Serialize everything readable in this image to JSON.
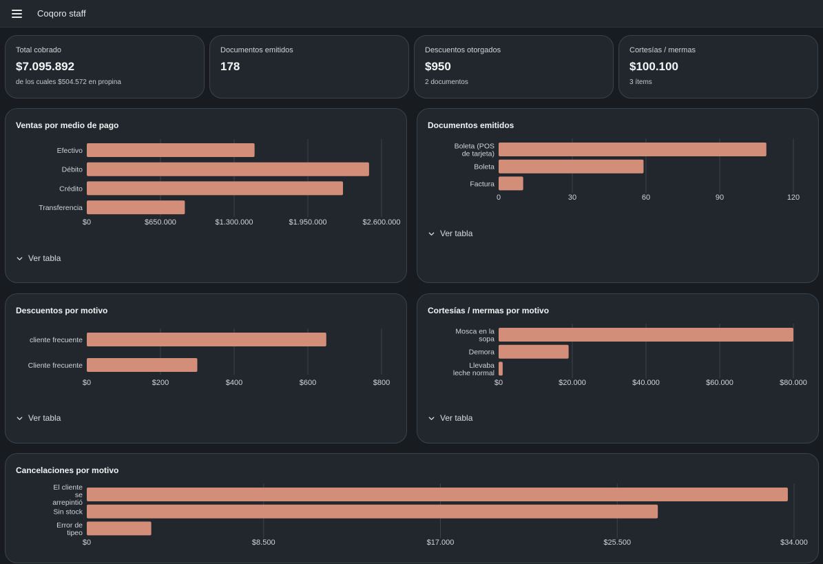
{
  "header": {
    "title": "Coqoro staff",
    "menu_icon": "hamburger-menu-icon"
  },
  "kpis": [
    {
      "label": "Total cobrado",
      "value": "$7.095.892",
      "sub": "de los cuales $504.572 en propina"
    },
    {
      "label": "Documentos emitidos",
      "value": "178",
      "sub": ""
    },
    {
      "label": "Descuentos otorgados",
      "value": "$950",
      "sub": "2 documentos"
    },
    {
      "label": "Cortesías / mermas",
      "value": "$100.100",
      "sub": "3 ítems"
    }
  ],
  "toggle_label": "Ver tabla",
  "colors": {
    "bar": "#d28e78",
    "grid": "#3b434b",
    "panel": "#21272d"
  },
  "chart_data": [
    {
      "type": "bar",
      "orientation": "horizontal",
      "title": "Ventas por medio de pago",
      "categories": [
        "Efectivo",
        "Débito",
        "Crédito",
        "Transferencia"
      ],
      "values": [
        1480000,
        2490000,
        2260000,
        865000
      ],
      "xlim": [
        0,
        2600000
      ],
      "ticks": [
        0,
        650000,
        1300000,
        1950000,
        2600000
      ],
      "tick_labels": [
        "$0",
        "$650.000",
        "$1.300.000",
        "$1.950.000",
        "$2.600.000"
      ]
    },
    {
      "type": "bar",
      "orientation": "horizontal",
      "title": "Documentos emitidos",
      "categories": [
        "Boleta (POS de tarjeta)",
        "Boleta",
        "Factura"
      ],
      "values": [
        109,
        59,
        10
      ],
      "xlim": [
        0,
        120
      ],
      "ticks": [
        0,
        30,
        60,
        90,
        120
      ],
      "tick_labels": [
        "0",
        "30",
        "60",
        "90",
        "120"
      ]
    },
    {
      "type": "bar",
      "orientation": "horizontal",
      "title": "Descuentos por motivo",
      "categories": [
        "cliente frecuente",
        "Cliente frecuente"
      ],
      "values": [
        650,
        300
      ],
      "xlim": [
        0,
        800
      ],
      "ticks": [
        0,
        200,
        400,
        600,
        800
      ],
      "tick_labels": [
        "$0",
        "$200",
        "$400",
        "$600",
        "$800"
      ]
    },
    {
      "type": "bar",
      "orientation": "horizontal",
      "title": "Cortesías / mermas por motivo",
      "categories": [
        "Mosca en la sopa",
        "Demora",
        "Llevaba leche normal"
      ],
      "values": [
        80000,
        19000,
        1100
      ],
      "xlim": [
        0,
        80000
      ],
      "ticks": [
        0,
        20000,
        40000,
        60000,
        80000
      ],
      "tick_labels": [
        "$0",
        "$20.000",
        "$40.000",
        "$60.000",
        "$80.000"
      ]
    },
    {
      "type": "bar",
      "orientation": "horizontal",
      "title": "Cancelaciones por motivo",
      "categories": [
        "El cliente se arrepintió",
        "Sin stock",
        "Error de tipeo"
      ],
      "values": [
        33700,
        27450,
        3100
      ],
      "xlim": [
        0,
        34000
      ],
      "ticks": [
        0,
        8500,
        17000,
        25500,
        34000
      ],
      "tick_labels": [
        "$0",
        "$8.500",
        "$17.000",
        "$25.500",
        "$34.000"
      ]
    }
  ]
}
